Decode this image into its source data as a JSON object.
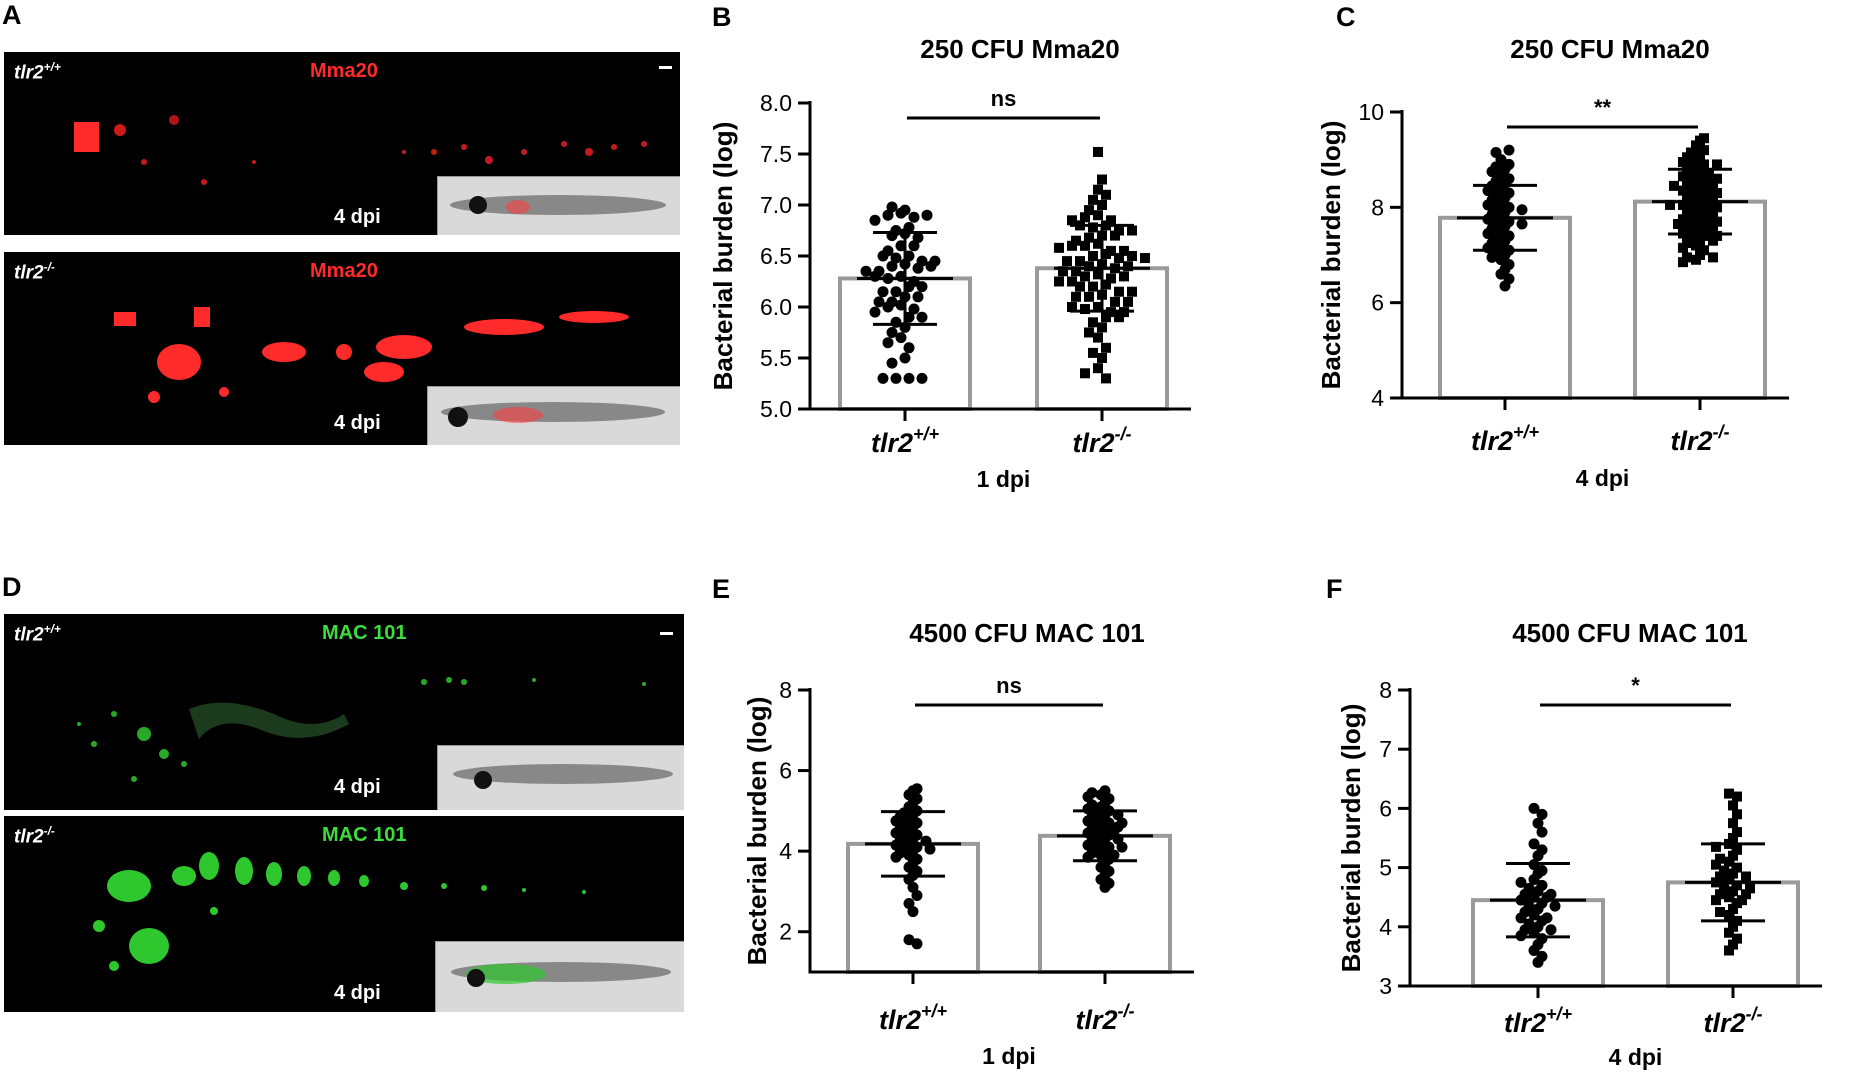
{
  "panels": {
    "A": {
      "letter": "A",
      "top": {
        "genotype_base": "tlr2",
        "genotype_sup": "+/+",
        "stain": "Mma20",
        "dpi": "4 dpi"
      },
      "bottom": {
        "genotype_base": "tlr2",
        "genotype_sup": "-/-",
        "stain": "Mma20",
        "dpi": "4 dpi"
      },
      "stain_color": "#ff2a2a"
    },
    "D": {
      "letter": "D",
      "top": {
        "genotype_base": "tlr2",
        "genotype_sup": "+/+",
        "stain": "MAC 101",
        "dpi": "4 dpi"
      },
      "bottom": {
        "genotype_base": "tlr2",
        "genotype_sup": "-/-",
        "stain": "MAC 101",
        "dpi": "4 dpi"
      },
      "stain_color": "#3ddc3d"
    }
  },
  "chart_data": [
    {
      "id": "B",
      "letter": "B",
      "type": "bar",
      "title": "250 CFU Mma20",
      "ylabel": "Bacterial burden (log)",
      "xlabel": "1 dpi",
      "ylim": [
        5.0,
        8.0
      ],
      "yticks": [
        "5.0",
        "5.5",
        "6.0",
        "6.5",
        "7.0",
        "7.5",
        "8.0"
      ],
      "categories": [
        {
          "base": "tlr2",
          "sup": "+/+"
        },
        {
          "base": "tlr2",
          "sup": "-/-"
        }
      ],
      "means": [
        6.28,
        6.38
      ],
      "sd": [
        0.45,
        0.42
      ],
      "significance": "ns",
      "markers": [
        "circle",
        "square"
      ],
      "points": [
        [
          6.95,
          6.98,
          6.92,
          6.9,
          6.88,
          6.85,
          6.78,
          6.72,
          6.7,
          6.68,
          6.6,
          6.55,
          6.5,
          6.48,
          6.45,
          6.42,
          6.4,
          6.38,
          6.35,
          6.3,
          6.28,
          6.25,
          6.2,
          6.15,
          6.1,
          6.05,
          6.02,
          6.0,
          5.98,
          5.95,
          5.9,
          5.85,
          5.8,
          5.75,
          5.7,
          5.6,
          5.5,
          5.45,
          5.3,
          5.3,
          5.3,
          5.3,
          6.6,
          6.4,
          6.2,
          6.9,
          6.75,
          6.5,
          6.3,
          6.1,
          5.9,
          5.65,
          6.45,
          6.35,
          6.15,
          6.05
        ],
        [
          7.52,
          7.25,
          7.15,
          7.1,
          7.05,
          7.0,
          6.95,
          6.9,
          6.88,
          6.85,
          6.8,
          6.78,
          6.75,
          6.7,
          6.68,
          6.62,
          6.6,
          6.55,
          6.52,
          6.5,
          6.48,
          6.45,
          6.42,
          6.4,
          6.38,
          6.35,
          6.32,
          6.3,
          6.28,
          6.25,
          6.22,
          6.2,
          6.15,
          6.12,
          6.1,
          6.05,
          6.0,
          5.98,
          5.95,
          5.9,
          5.85,
          5.8,
          5.75,
          5.7,
          5.6,
          5.55,
          5.5,
          5.4,
          5.3,
          5.35,
          6.6,
          6.5,
          6.4,
          6.3,
          6.2,
          6.1,
          6.0,
          5.9,
          6.7,
          6.8,
          6.45,
          6.35,
          6.25,
          6.15,
          6.05,
          5.95,
          6.65,
          6.55,
          6.85,
          6.75,
          6.58,
          6.48
        ]
      ]
    },
    {
      "id": "C",
      "letter": "C",
      "type": "bar",
      "title": "250 CFU Mma20",
      "ylabel": "Bacterial burden (log)",
      "xlabel": "4 dpi",
      "ylim": [
        4,
        10
      ],
      "yticks": [
        "4",
        "6",
        "8",
        "10"
      ],
      "categories": [
        {
          "base": "tlr2",
          "sup": "+/+"
        },
        {
          "base": "tlr2",
          "sup": "-/-"
        }
      ],
      "means": [
        7.78,
        8.12
      ],
      "sd": [
        0.68,
        0.68
      ],
      "significance": "**",
      "markers": [
        "circle",
        "square"
      ],
      "points": [
        [
          9.2,
          9.15,
          9.0,
          8.9,
          8.85,
          8.8,
          8.7,
          8.6,
          8.55,
          8.5,
          8.4,
          8.35,
          8.3,
          8.25,
          8.2,
          8.1,
          8.05,
          8.0,
          7.95,
          7.9,
          7.85,
          7.8,
          7.75,
          7.7,
          7.65,
          7.6,
          7.55,
          7.5,
          7.45,
          7.4,
          7.3,
          7.2,
          7.15,
          7.1,
          7.0,
          6.9,
          6.8,
          6.7,
          6.6,
          6.5,
          6.35,
          8.45,
          8.15,
          7.95,
          7.65,
          7.35,
          7.05,
          8.75,
          7.25,
          6.95
        ],
        [
          9.45,
          9.4,
          9.3,
          9.2,
          9.1,
          9.05,
          9.0,
          8.95,
          8.9,
          8.85,
          8.8,
          8.75,
          8.7,
          8.65,
          8.6,
          8.55,
          8.5,
          8.45,
          8.4,
          8.35,
          8.3,
          8.25,
          8.2,
          8.15,
          8.1,
          8.05,
          8.0,
          7.95,
          7.9,
          7.85,
          7.8,
          7.75,
          7.7,
          7.65,
          7.6,
          7.55,
          7.5,
          7.45,
          7.4,
          7.35,
          7.3,
          7.25,
          7.2,
          7.1,
          7.0,
          6.95,
          6.9,
          6.85,
          8.6,
          8.4,
          8.2,
          8.0,
          7.8,
          7.6,
          7.4,
          8.9,
          8.7,
          8.5,
          8.3,
          8.1,
          7.9,
          7.7,
          7.5,
          7.3,
          9.15,
          8.45,
          8.05,
          7.65,
          7.15,
          6.95
        ]
      ]
    },
    {
      "id": "E",
      "letter": "E",
      "type": "bar",
      "title": "4500 CFU MAC 101",
      "ylabel": "Bacterial burden (log)",
      "xlabel": "1 dpi",
      "ylim": [
        1,
        8
      ],
      "yticks": [
        "2",
        "4",
        "6",
        "8"
      ],
      "categories": [
        {
          "base": "tlr2",
          "sup": "+/+"
        },
        {
          "base": "tlr2",
          "sup": "-/-"
        }
      ],
      "means": [
        4.18,
        4.38
      ],
      "sd": [
        0.8,
        0.62
      ],
      "significance": "ns",
      "markers": [
        "circle",
        "circle"
      ],
      "points": [
        [
          5.55,
          5.5,
          5.4,
          5.3,
          5.2,
          5.1,
          5.0,
          4.9,
          4.85,
          4.8,
          4.7,
          4.65,
          4.6,
          4.5,
          4.45,
          4.4,
          4.35,
          4.3,
          4.25,
          4.2,
          4.15,
          4.1,
          4.05,
          4.0,
          3.95,
          3.9,
          3.8,
          3.7,
          3.6,
          3.5,
          3.4,
          3.3,
          3.1,
          2.9,
          2.7,
          2.5,
          1.8,
          1.7,
          4.55,
          4.25,
          4.05,
          3.85,
          4.75,
          4.95
        ],
        [
          5.5,
          5.45,
          5.4,
          5.35,
          5.3,
          5.2,
          5.15,
          5.1,
          5.0,
          4.95,
          4.9,
          4.85,
          4.8,
          4.75,
          4.7,
          4.65,
          4.6,
          4.55,
          4.5,
          4.45,
          4.4,
          4.35,
          4.3,
          4.25,
          4.2,
          4.15,
          4.1,
          4.05,
          4.0,
          3.95,
          3.9,
          3.85,
          3.8,
          3.7,
          3.6,
          3.5,
          3.4,
          3.3,
          3.2,
          3.1,
          4.5,
          4.3,
          4.1,
          3.9,
          4.7,
          4.9,
          5.05,
          4.6
        ]
      ]
    },
    {
      "id": "F",
      "letter": "F",
      "type": "bar",
      "title": "4500 CFU MAC 101",
      "ylabel": "Bacterial burden (log)",
      "xlabel": "4 dpi",
      "ylim": [
        3,
        8
      ],
      "yticks": [
        "3",
        "4",
        "5",
        "6",
        "7",
        "8"
      ],
      "categories": [
        {
          "base": "tlr2",
          "sup": "+/+"
        },
        {
          "base": "tlr2",
          "sup": "-/-"
        }
      ],
      "means": [
        4.45,
        4.75
      ],
      "sd": [
        0.62,
        0.65
      ],
      "significance": "*",
      "markers": [
        "circle",
        "square"
      ],
      "points": [
        [
          6.0,
          5.9,
          5.75,
          5.6,
          5.4,
          5.3,
          5.2,
          5.05,
          4.95,
          4.9,
          4.8,
          4.7,
          4.65,
          4.6,
          4.55,
          4.5,
          4.45,
          4.4,
          4.35,
          4.3,
          4.25,
          4.2,
          4.15,
          4.1,
          4.05,
          4.0,
          3.95,
          3.9,
          3.85,
          3.8,
          3.7,
          3.6,
          3.5,
          3.4,
          4.55,
          4.35,
          4.15,
          3.95,
          4.75,
          4.5
        ],
        [
          6.25,
          6.2,
          6.05,
          5.9,
          5.75,
          5.6,
          5.5,
          5.4,
          5.3,
          5.2,
          5.1,
          5.05,
          5.0,
          4.95,
          4.9,
          4.85,
          4.8,
          4.75,
          4.7,
          4.65,
          4.6,
          4.55,
          4.5,
          4.45,
          4.4,
          4.3,
          4.2,
          4.1,
          4.0,
          3.9,
          3.8,
          3.7,
          3.6,
          4.85,
          4.65,
          4.45,
          4.25,
          5.15,
          5.35,
          4.55
        ]
      ]
    }
  ]
}
